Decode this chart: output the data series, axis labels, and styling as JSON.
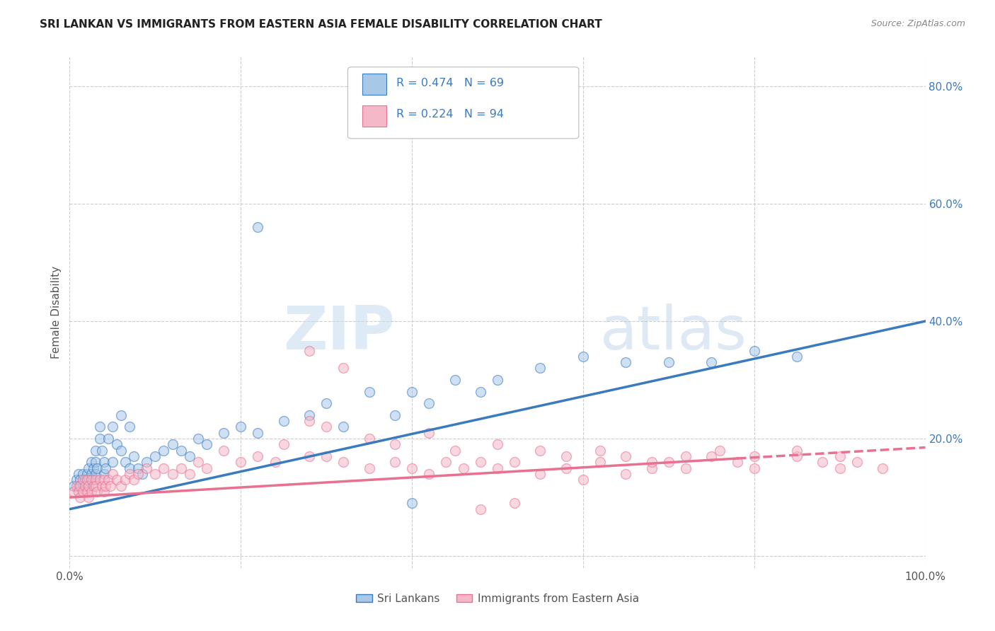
{
  "title": "SRI LANKAN VS IMMIGRANTS FROM EASTERN ASIA FEMALE DISABILITY CORRELATION CHART",
  "source": "Source: ZipAtlas.com",
  "ylabel": "Female Disability",
  "xlim": [
    0,
    1.0
  ],
  "ylim": [
    -0.02,
    0.85
  ],
  "yticks": [
    0.0,
    0.2,
    0.4,
    0.6,
    0.8
  ],
  "yticklabels": [
    "",
    "20.0%",
    "40.0%",
    "60.0%",
    "80.0%"
  ],
  "blue_R": 0.474,
  "blue_N": 69,
  "pink_R": 0.224,
  "pink_N": 94,
  "blue_color": "#a8c8e8",
  "pink_color": "#f4b8c8",
  "blue_line_color": "#3a7abf",
  "pink_line_color": "#e87090",
  "background_color": "#ffffff",
  "grid_color": "#cccccc",
  "watermark_zip": "ZIP",
  "watermark_atlas": "atlas",
  "legend_label_blue": "Sri Lankans",
  "legend_label_pink": "Immigrants from Eastern Asia",
  "blue_line_x0": 0.0,
  "blue_line_y0": 0.08,
  "blue_line_x1": 1.0,
  "blue_line_y1": 0.4,
  "pink_line_x0": 0.0,
  "pink_line_y0": 0.1,
  "pink_line_x1": 1.0,
  "pink_line_y1": 0.185,
  "blue_x": [
    0.005,
    0.008,
    0.01,
    0.01,
    0.012,
    0.015,
    0.015,
    0.018,
    0.02,
    0.02,
    0.022,
    0.022,
    0.025,
    0.025,
    0.028,
    0.028,
    0.03,
    0.03,
    0.03,
    0.032,
    0.035,
    0.035,
    0.038,
    0.04,
    0.04,
    0.042,
    0.045,
    0.05,
    0.05,
    0.055,
    0.06,
    0.06,
    0.065,
    0.07,
    0.07,
    0.075,
    0.08,
    0.085,
    0.09,
    0.1,
    0.11,
    0.12,
    0.13,
    0.14,
    0.15,
    0.16,
    0.18,
    0.2,
    0.22,
    0.25,
    0.28,
    0.3,
    0.32,
    0.35,
    0.38,
    0.4,
    0.42,
    0.45,
    0.48,
    0.5,
    0.55,
    0.6,
    0.65,
    0.7,
    0.75,
    0.8,
    0.85,
    0.22,
    0.4
  ],
  "blue_y": [
    0.12,
    0.13,
    0.12,
    0.14,
    0.13,
    0.12,
    0.14,
    0.13,
    0.14,
    0.12,
    0.15,
    0.13,
    0.14,
    0.16,
    0.15,
    0.13,
    0.16,
    0.14,
    0.18,
    0.15,
    0.2,
    0.22,
    0.18,
    0.16,
    0.14,
    0.15,
    0.2,
    0.22,
    0.16,
    0.19,
    0.24,
    0.18,
    0.16,
    0.22,
    0.15,
    0.17,
    0.15,
    0.14,
    0.16,
    0.17,
    0.18,
    0.19,
    0.18,
    0.17,
    0.2,
    0.19,
    0.21,
    0.22,
    0.21,
    0.23,
    0.24,
    0.26,
    0.22,
    0.28,
    0.24,
    0.28,
    0.26,
    0.3,
    0.28,
    0.3,
    0.32,
    0.34,
    0.33,
    0.33,
    0.33,
    0.35,
    0.34,
    0.56,
    0.09
  ],
  "pink_x": [
    0.005,
    0.008,
    0.01,
    0.012,
    0.012,
    0.015,
    0.015,
    0.018,
    0.02,
    0.02,
    0.022,
    0.022,
    0.025,
    0.025,
    0.028,
    0.03,
    0.03,
    0.032,
    0.035,
    0.038,
    0.04,
    0.04,
    0.042,
    0.045,
    0.048,
    0.05,
    0.055,
    0.06,
    0.065,
    0.07,
    0.075,
    0.08,
    0.09,
    0.1,
    0.11,
    0.12,
    0.13,
    0.14,
    0.15,
    0.16,
    0.18,
    0.2,
    0.22,
    0.24,
    0.25,
    0.28,
    0.28,
    0.3,
    0.32,
    0.35,
    0.38,
    0.4,
    0.42,
    0.44,
    0.46,
    0.48,
    0.5,
    0.52,
    0.55,
    0.58,
    0.6,
    0.62,
    0.65,
    0.68,
    0.7,
    0.72,
    0.75,
    0.78,
    0.8,
    0.85,
    0.88,
    0.9,
    0.92,
    0.95,
    0.3,
    0.35,
    0.38,
    0.42,
    0.45,
    0.5,
    0.55,
    0.58,
    0.62,
    0.65,
    0.68,
    0.72,
    0.76,
    0.8,
    0.85,
    0.9,
    0.28,
    0.32,
    0.48,
    0.52
  ],
  "pink_y": [
    0.11,
    0.12,
    0.11,
    0.12,
    0.1,
    0.11,
    0.13,
    0.12,
    0.13,
    0.11,
    0.12,
    0.1,
    0.13,
    0.11,
    0.12,
    0.13,
    0.12,
    0.11,
    0.13,
    0.12,
    0.11,
    0.13,
    0.12,
    0.13,
    0.12,
    0.14,
    0.13,
    0.12,
    0.13,
    0.14,
    0.13,
    0.14,
    0.15,
    0.14,
    0.15,
    0.14,
    0.15,
    0.14,
    0.16,
    0.15,
    0.18,
    0.16,
    0.17,
    0.16,
    0.19,
    0.17,
    0.23,
    0.17,
    0.16,
    0.15,
    0.16,
    0.15,
    0.14,
    0.16,
    0.15,
    0.16,
    0.15,
    0.16,
    0.14,
    0.15,
    0.13,
    0.16,
    0.14,
    0.15,
    0.16,
    0.15,
    0.17,
    0.16,
    0.15,
    0.17,
    0.16,
    0.15,
    0.16,
    0.15,
    0.22,
    0.2,
    0.19,
    0.21,
    0.18,
    0.19,
    0.18,
    0.17,
    0.18,
    0.17,
    0.16,
    0.17,
    0.18,
    0.17,
    0.18,
    0.17,
    0.35,
    0.32,
    0.08,
    0.09
  ]
}
